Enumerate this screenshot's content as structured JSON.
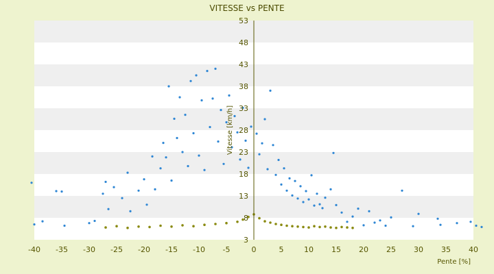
{
  "chart_data": {
    "type": "scatter",
    "title": "VITESSE vs PENTE",
    "xlabel": "Pente [%]",
    "ylabel": "Vitesse [km/h]",
    "xlim": [
      -40,
      40
    ],
    "ylim": [
      3,
      53
    ],
    "x_ticks": [
      -40,
      -35,
      -30,
      -25,
      -20,
      -15,
      -10,
      -5,
      0,
      5,
      10,
      15,
      20,
      25,
      30,
      35,
      40
    ],
    "y_ticks": [
      3,
      8,
      13,
      18,
      23,
      28,
      33,
      38,
      43,
      48,
      53
    ],
    "grid": "horizontal alternating bands",
    "legend": "none",
    "series": [
      {
        "color": "#2e86d4",
        "points": [
          [
            -40.5,
            16
          ],
          [
            -40,
            6.5
          ],
          [
            -38.5,
            7.2
          ],
          [
            -36,
            14.1
          ],
          [
            -35,
            14
          ],
          [
            -34.5,
            6.2
          ],
          [
            -30,
            6.8
          ],
          [
            -29,
            7.3
          ],
          [
            -27.5,
            13.5
          ],
          [
            -27,
            16.2
          ],
          [
            -26.5,
            10
          ],
          [
            -25.5,
            15
          ],
          [
            -24,
            12.5
          ],
          [
            -23,
            18.3
          ],
          [
            -22.5,
            9.5
          ],
          [
            -21,
            14.2
          ],
          [
            -20,
            16.8
          ],
          [
            -19.5,
            11
          ],
          [
            -18.5,
            22
          ],
          [
            -18,
            14.5
          ],
          [
            -17,
            19.3
          ],
          [
            -16.5,
            25.1
          ],
          [
            -16,
            21.8
          ],
          [
            -15.5,
            38
          ],
          [
            -15,
            16.5
          ],
          [
            -14.5,
            30.6
          ],
          [
            -14,
            26.2
          ],
          [
            -13.5,
            35.5
          ],
          [
            -13,
            23
          ],
          [
            -12.5,
            31.5
          ],
          [
            -12,
            19.8
          ],
          [
            -11.5,
            39.2
          ],
          [
            -11,
            27.3
          ],
          [
            -10.5,
            40.5
          ],
          [
            -10,
            22.2
          ],
          [
            -9.5,
            34.8
          ],
          [
            -9,
            18.9
          ],
          [
            -8.5,
            41.5
          ],
          [
            -8,
            28.7
          ],
          [
            -7.5,
            35.2
          ],
          [
            -7,
            42
          ],
          [
            -6.5,
            25.4
          ],
          [
            -6,
            32.6
          ],
          [
            -5.5,
            20.3
          ],
          [
            -5,
            29.8
          ],
          [
            -4.5,
            35.9
          ],
          [
            -4,
            24.1
          ],
          [
            -3.5,
            31.2
          ],
          [
            -3,
            27.5
          ],
          [
            -2.5,
            21.3
          ],
          [
            -2,
            33.1
          ],
          [
            -1.5,
            25.6
          ],
          [
            -1,
            19.4
          ],
          [
            -0.5,
            28.8
          ],
          [
            0.5,
            27.2
          ],
          [
            1,
            22.5
          ],
          [
            1.5,
            25
          ],
          [
            2,
            30.5
          ],
          [
            2.5,
            19.1
          ],
          [
            3,
            37
          ],
          [
            3.5,
            24.6
          ],
          [
            4,
            17.8
          ],
          [
            4.5,
            21.2
          ],
          [
            5,
            15.6
          ],
          [
            5.5,
            19.3
          ],
          [
            6,
            14.2
          ],
          [
            6.5,
            17
          ],
          [
            7,
            13.1
          ],
          [
            7.5,
            16.4
          ],
          [
            8,
            12.4
          ],
          [
            8.5,
            15.2
          ],
          [
            9,
            11.6
          ],
          [
            9.5,
            14.1
          ],
          [
            10,
            12.2
          ],
          [
            10.5,
            17.7
          ],
          [
            11,
            10.8
          ],
          [
            11.5,
            13.5
          ],
          [
            12,
            11.1
          ],
          [
            12.5,
            10.2
          ],
          [
            13,
            12.6
          ],
          [
            14,
            14.5
          ],
          [
            14.5,
            22.8
          ],
          [
            15,
            10.9
          ],
          [
            16,
            9.2
          ],
          [
            17,
            7.1
          ],
          [
            18,
            8.3
          ],
          [
            19,
            10.1
          ],
          [
            20,
            6.3
          ],
          [
            21,
            9.5
          ],
          [
            22,
            6.9
          ],
          [
            23,
            7.4
          ],
          [
            24,
            6.2
          ],
          [
            25,
            8.1
          ],
          [
            27,
            14.2
          ],
          [
            29,
            6.1
          ],
          [
            30,
            8.9
          ],
          [
            33.5,
            7.8
          ],
          [
            34,
            6.4
          ],
          [
            37,
            6.8
          ],
          [
            39.5,
            7.1
          ],
          [
            40.5,
            6.2
          ],
          [
            41.5,
            5.9
          ]
        ]
      },
      {
        "color": "#8a8a10",
        "points": [
          [
            -27,
            5.8
          ],
          [
            -25,
            6.1
          ],
          [
            -23,
            5.7
          ],
          [
            -21,
            6
          ],
          [
            -19,
            5.9
          ],
          [
            -17,
            6.2
          ],
          [
            -15,
            6
          ],
          [
            -13,
            6.3
          ],
          [
            -11,
            6.1
          ],
          [
            -9,
            6.4
          ],
          [
            -7,
            6.6
          ],
          [
            -5,
            6.8
          ],
          [
            -3,
            7.1
          ],
          [
            -2,
            7.6
          ],
          [
            -1,
            8.2
          ],
          [
            0,
            8.8
          ],
          [
            1,
            7.9
          ],
          [
            2,
            7.2
          ],
          [
            3,
            6.9
          ],
          [
            4,
            6.6
          ],
          [
            5,
            6.4
          ],
          [
            6,
            6.2
          ],
          [
            7,
            6.1
          ],
          [
            8,
            6
          ],
          [
            9,
            5.9
          ],
          [
            10,
            5.8
          ],
          [
            11,
            6.1
          ],
          [
            12,
            5.9
          ],
          [
            13,
            6
          ],
          [
            14,
            5.8
          ],
          [
            15,
            5.7
          ],
          [
            16,
            5.9
          ],
          [
            17,
            5.8
          ],
          [
            18,
            5.7
          ]
        ]
      }
    ]
  }
}
